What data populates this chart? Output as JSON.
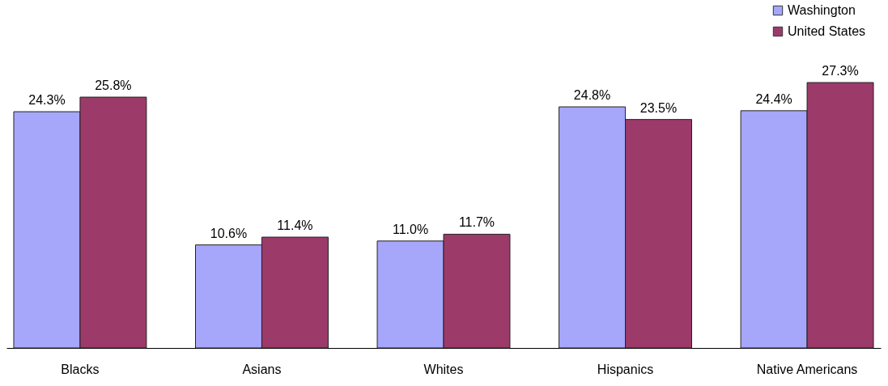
{
  "chart_data": {
    "type": "bar",
    "categories": [
      "Blacks",
      "Asians",
      "Whites",
      "Hispanics",
      "Native Americans"
    ],
    "series": [
      {
        "name": "Washington",
        "color": "#a6a6fa",
        "values": [
          24.3,
          10.6,
          11.0,
          24.8,
          24.4
        ],
        "value_labels": [
          "24.3%",
          "10.6%",
          "11.0%",
          "24.8%",
          "24.4%"
        ]
      },
      {
        "name": "United States",
        "color": "#9c3a6a",
        "values": [
          25.8,
          11.4,
          11.7,
          23.5,
          27.3
        ],
        "value_labels": [
          "25.8%",
          "11.4%",
          "11.7%",
          "23.5%",
          "27.3%"
        ]
      }
    ],
    "legend": "top right"
  }
}
